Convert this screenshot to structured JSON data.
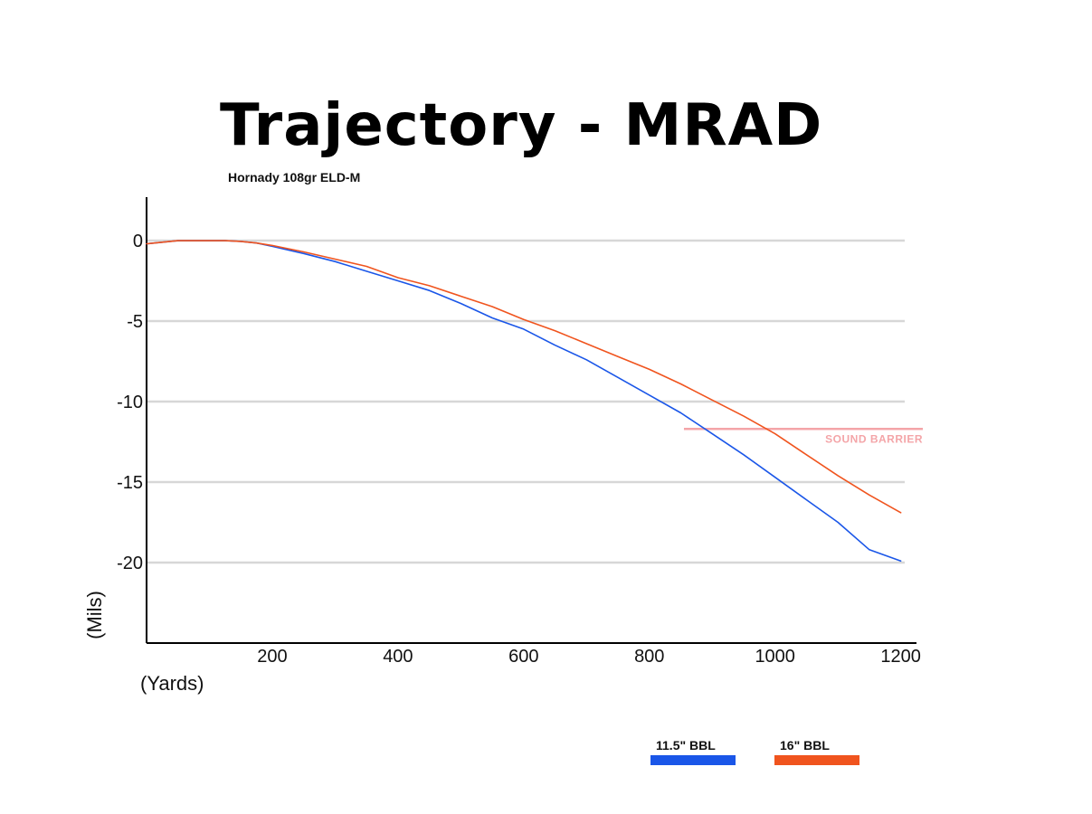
{
  "chart_data": {
    "type": "line",
    "title": "Trajectory - MRAD",
    "subtitle": "Hornady 108gr ELD-M",
    "xlabel": "(Yards)",
    "ylabel": "(Mils)",
    "xlim": [
      0,
      1225
    ],
    "ylim": [
      -25,
      2.7
    ],
    "x_ticks": [
      200,
      400,
      600,
      800,
      1000,
      1200
    ],
    "y_ticks": [
      0,
      -5,
      -10,
      -15,
      -20
    ],
    "grid": "horizontal",
    "series": [
      {
        "name": "11.5\" BBL",
        "color": "#1a56e8",
        "x": [
          0,
          25,
          50,
          75,
          100,
          125,
          150,
          175,
          200,
          250,
          300,
          350,
          400,
          450,
          500,
          550,
          600,
          650,
          700,
          750,
          800,
          850,
          900,
          950,
          1000,
          1050,
          1100,
          1150,
          1200
        ],
        "y": [
          -0.2,
          -0.1,
          0,
          0,
          0,
          0,
          -0.05,
          -0.15,
          -0.35,
          -0.8,
          -1.3,
          -1.9,
          -2.5,
          -3.1,
          -3.9,
          -4.8,
          -5.5,
          -6.5,
          -7.4,
          -8.5,
          -9.6,
          -10.7,
          -12,
          -13.3,
          -14.7,
          -16.1,
          -17.5,
          -19.2,
          -19.9
        ]
      },
      {
        "name": "16\" BBL",
        "color": "#f0541e",
        "x": [
          0,
          25,
          50,
          75,
          100,
          125,
          150,
          175,
          200,
          250,
          300,
          350,
          400,
          450,
          500,
          550,
          600,
          650,
          700,
          750,
          800,
          850,
          900,
          950,
          1000,
          1050,
          1100,
          1150,
          1200
        ],
        "y": [
          -0.2,
          -0.1,
          0,
          0,
          0,
          0,
          -0.05,
          -0.15,
          -0.3,
          -0.7,
          -1.15,
          -1.6,
          -2.3,
          -2.8,
          -3.45,
          -4.1,
          -4.9,
          -5.6,
          -6.4,
          -7.2,
          -8,
          -8.9,
          -9.9,
          -10.9,
          -12,
          -13.3,
          -14.6,
          -15.8,
          -16.9
        ]
      }
    ],
    "reference_line": {
      "label": "SOUND BARRIER",
      "y": -11.7,
      "x_start": 855,
      "x_end": 1225,
      "color": "#f4a5a8"
    },
    "legend_placement": "bottom-right"
  }
}
